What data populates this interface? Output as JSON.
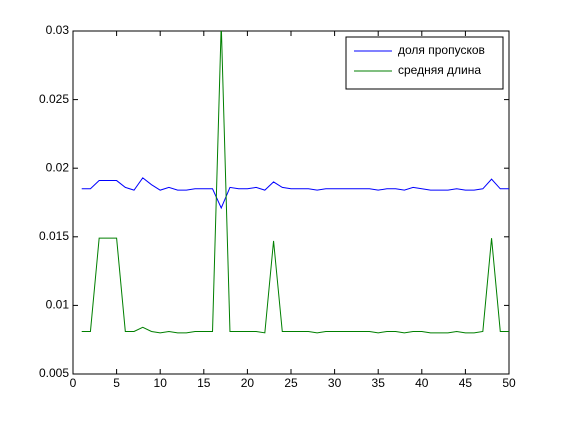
{
  "chart_data": {
    "type": "line",
    "x": [
      1,
      2,
      3,
      4,
      5,
      6,
      7,
      8,
      9,
      10,
      11,
      12,
      13,
      14,
      15,
      16,
      17,
      18,
      19,
      20,
      21,
      22,
      23,
      24,
      25,
      26,
      27,
      28,
      29,
      30,
      31,
      32,
      33,
      34,
      35,
      36,
      37,
      38,
      39,
      40,
      41,
      42,
      43,
      44,
      45,
      46,
      47,
      48,
      49,
      50
    ],
    "series": [
      {
        "name": "доля пропусков",
        "color": "#0000ff",
        "values": [
          0.0185,
          0.0185,
          0.0191,
          0.0191,
          0.0191,
          0.0186,
          0.0184,
          0.0193,
          0.0188,
          0.0184,
          0.0186,
          0.0184,
          0.0184,
          0.0185,
          0.0185,
          0.0185,
          0.0171,
          0.0186,
          0.0185,
          0.0185,
          0.0186,
          0.0184,
          0.019,
          0.0186,
          0.0185,
          0.0185,
          0.0185,
          0.0184,
          0.0185,
          0.0185,
          0.0185,
          0.0185,
          0.0185,
          0.0185,
          0.0184,
          0.0185,
          0.0185,
          0.0184,
          0.0186,
          0.0185,
          0.0184,
          0.0184,
          0.0184,
          0.0185,
          0.0184,
          0.0184,
          0.0185,
          0.0192,
          0.0185,
          0.0185
        ]
      },
      {
        "name": "средняя длина",
        "color": "#007f00",
        "values": [
          0.0081,
          0.0081,
          0.0149,
          0.0149,
          0.0149,
          0.0081,
          0.0081,
          0.0084,
          0.0081,
          0.008,
          0.0081,
          0.008,
          0.008,
          0.0081,
          0.0081,
          0.0081,
          0.0305,
          0.0081,
          0.0081,
          0.0081,
          0.0081,
          0.008,
          0.0147,
          0.0081,
          0.0081,
          0.0081,
          0.0081,
          0.008,
          0.0081,
          0.0081,
          0.0081,
          0.0081,
          0.0081,
          0.0081,
          0.008,
          0.0081,
          0.0081,
          0.008,
          0.0081,
          0.0081,
          0.008,
          0.008,
          0.008,
          0.0081,
          0.008,
          0.008,
          0.0081,
          0.0149,
          0.0081,
          0.0081
        ]
      }
    ],
    "xlim": [
      0,
      50
    ],
    "xticks": [
      0,
      5,
      10,
      15,
      20,
      25,
      30,
      35,
      40,
      45,
      50
    ],
    "ylim": [
      0.005,
      0.03
    ],
    "yticks": [
      0.005,
      0.01,
      0.015,
      0.02,
      0.025,
      0.03
    ],
    "legend": "upper right",
    "grid": false
  }
}
